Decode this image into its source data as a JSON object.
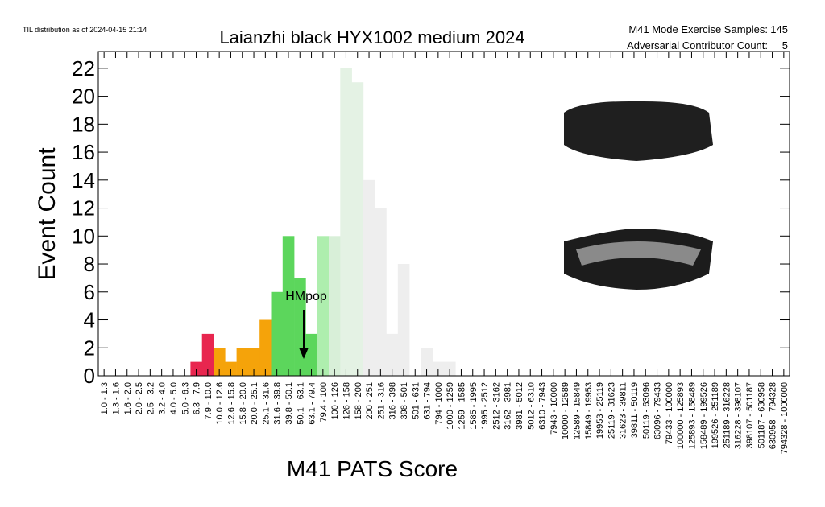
{
  "chart_data": {
    "type": "histogram",
    "timestamp": "TIL distribution as of 2024-04-15 21:14",
    "title": "Laianzhi black HYX1002 medium 2024",
    "stats": [
      {
        "label": "M41 Mode Exercise Samples:",
        "value": 145
      },
      {
        "label": "Adversarial Contributor Count:",
        "value": 5
      }
    ],
    "x_label": "M41 PATS Score",
    "y_label": "Event Count",
    "annotation": "HMpop",
    "categories": [
      "1.0 - 1.3",
      "1.3 - 1.6",
      "1.6 - 2.0",
      "2.0 - 2.5",
      "2.5 - 3.2",
      "3.2 - 4.0",
      "4.0 - 5.0",
      "5.0 - 6.3",
      "6.3 - 7.9",
      "7.9 - 10.0",
      "10.0 - 12.6",
      "12.6 - 15.8",
      "15.8 - 20.0",
      "20.0 - 25.1",
      "25.1 - 31.6",
      "31.6 - 39.8",
      "39.8 - 50.1",
      "50.1 - 63.1",
      "63.1 - 79.4",
      "79.4 - 100",
      "100 - 126",
      "126 - 158",
      "158 - 200",
      "200 - 251",
      "251 - 316",
      "316 - 398",
      "398 - 501",
      "501 - 631",
      "631 - 794",
      "794 - 1000",
      "1000 - 1259",
      "1259 - 1585",
      "1585 - 1995",
      "1995 - 2512",
      "2512 - 3162",
      "3162 - 3981",
      "3981 - 5012",
      "5012 - 6310",
      "6310 - 7943",
      "7943 - 10000",
      "10000 - 12589",
      "12589 - 15849",
      "15849 - 19953",
      "19953 - 25119",
      "25119 - 31623",
      "31623 - 39811",
      "39811 - 50119",
      "50119 - 63096",
      "63096 - 79433",
      "79433 - 100000",
      "100000 - 125893",
      "125893 - 158489",
      "158489 - 199526",
      "199526 - 251189",
      "251189 - 316228",
      "316228 - 398107",
      "398107 - 501187",
      "501187 - 630958",
      "630958 - 794328",
      "794328 - 1000000"
    ],
    "values": [
      0,
      0,
      0,
      0,
      0,
      0,
      0,
      0,
      1,
      3,
      2,
      1,
      2,
      2,
      4,
      6,
      10,
      7,
      3,
      10,
      10,
      22,
      21,
      14,
      12,
      3,
      8,
      0,
      2,
      1,
      1,
      0,
      0,
      0,
      0,
      0,
      0,
      0,
      0,
      0,
      0,
      0,
      0,
      0,
      0,
      0,
      0,
      0,
      0,
      0,
      0,
      0,
      0,
      0,
      0,
      0,
      0,
      0,
      0,
      0
    ],
    "colors": [
      "#e8e8e8",
      "#e8e8e8",
      "#e8e8e8",
      "#e8e8e8",
      "#e8e8e8",
      "#e8e8e8",
      "#e8e8e8",
      "#e8e8e8",
      "#e8264f",
      "#e8264f",
      "#f5a30a",
      "#f5a30a",
      "#f5a30a",
      "#f5a30a",
      "#f5a30a",
      "#5cd65c",
      "#5cd65c",
      "#5cd65c",
      "#5cd65c",
      "#aeeeae",
      "#d8efd8",
      "#e4f2e4",
      "#e4f2e4",
      "#eeeeee",
      "#eeeeee",
      "#eeeeee",
      "#eeeeee",
      "#eeeeee",
      "#eeeeee",
      "#eeeeee",
      "#eeeeee",
      "#eeeeee",
      "#eeeeee",
      "#eeeeee",
      "#eeeeee",
      "#eeeeee",
      "#eeeeee",
      "#eeeeee",
      "#eeeeee",
      "#eeeeee",
      "#eeeeee",
      "#eeeeee",
      "#eeeeee",
      "#eeeeee",
      "#eeeeee",
      "#eeeeee",
      "#eeeeee",
      "#eeeeee",
      "#eeeeee",
      "#eeeeee",
      "#eeeeee",
      "#eeeeee",
      "#eeeeee",
      "#eeeeee",
      "#eeeeee",
      "#eeeeee",
      "#eeeeee",
      "#eeeeee",
      "#eeeeee",
      "#eeeeee"
    ],
    "ylim": [
      0,
      23.2
    ],
    "yticks": [
      0,
      2,
      4,
      6,
      8,
      10,
      12,
      14,
      16,
      18,
      20,
      22
    ]
  }
}
